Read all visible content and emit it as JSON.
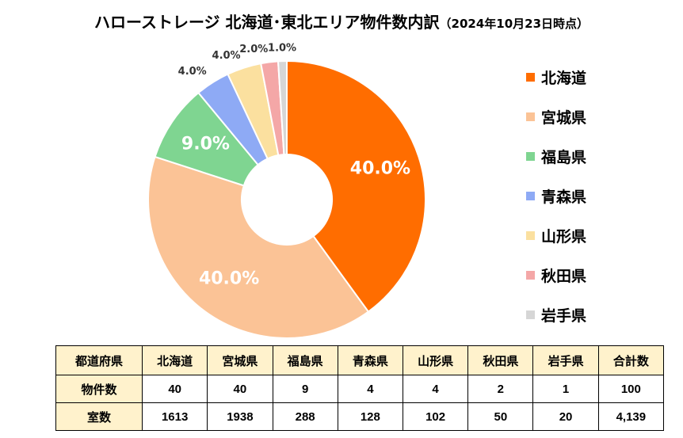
{
  "title": "ハローストレージ 北海道･東北エリア物件数内訳",
  "date_note": "（2024年10月23日時点）",
  "chart_data": {
    "type": "pie",
    "title": "ハローストレージ 北海道･東北エリア物件数内訳（2024年10月23日時点）",
    "donut": true,
    "categories": [
      "北海道",
      "宮城県",
      "福島県",
      "青森県",
      "山形県",
      "秋田県",
      "岩手県"
    ],
    "values": [
      40.0,
      40.0,
      9.0,
      4.0,
      4.0,
      2.0,
      1.0
    ],
    "labels": [
      "40.0%",
      "40.0%",
      "9.0%",
      "4.0%",
      "4.0%",
      "2.0%",
      "1.0%"
    ],
    "colors": [
      "#ff6d00",
      "#fbc396",
      "#7fd591",
      "#8eaaf5",
      "#fbe09f",
      "#f4a7a7",
      "#d6d6d6"
    ],
    "legend_position": "right"
  },
  "table": {
    "headers": [
      "都道府県",
      "北海道",
      "宮城県",
      "福島県",
      "青森県",
      "山形県",
      "秋田県",
      "岩手県",
      "合計数"
    ],
    "rows": [
      {
        "label": "物件数",
        "cells": [
          "40",
          "40",
          "9",
          "4",
          "4",
          "2",
          "1",
          "100"
        ]
      },
      {
        "label": "室数",
        "cells": [
          "1613",
          "1938",
          "288",
          "128",
          "102",
          "50",
          "20",
          "4,139"
        ]
      }
    ]
  }
}
